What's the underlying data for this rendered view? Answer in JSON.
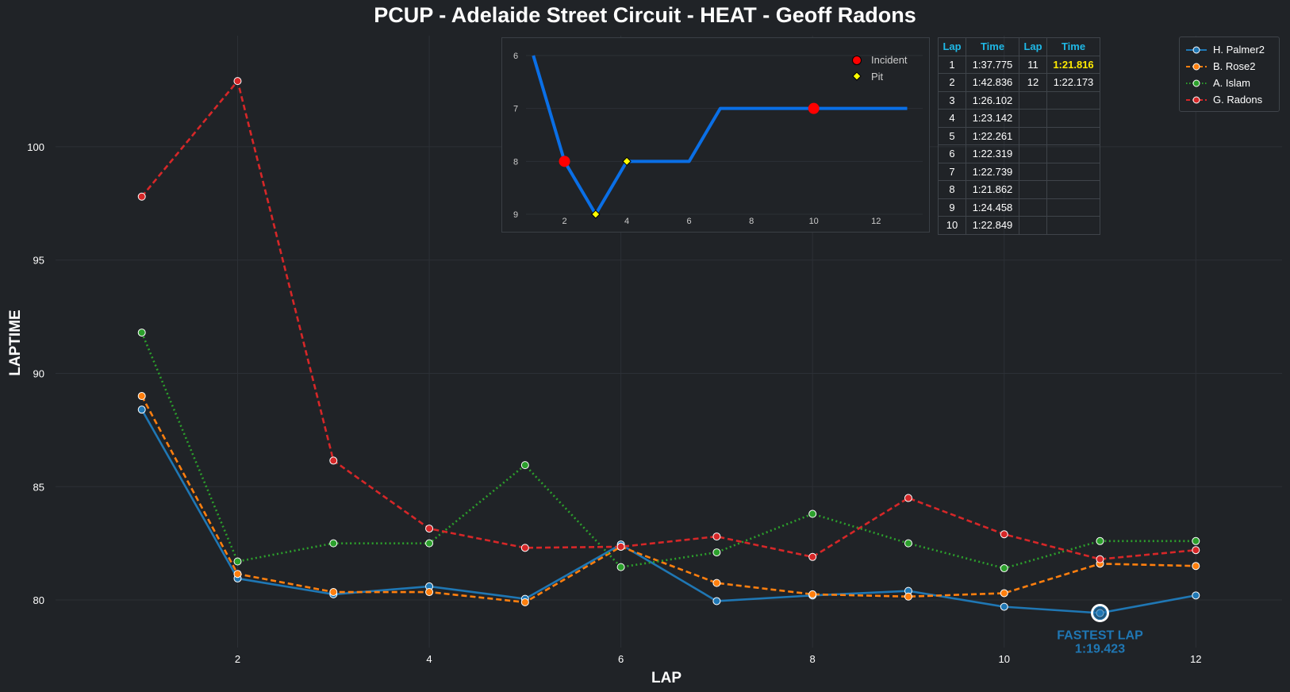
{
  "title": "PCUP - Adelaide Street Circuit - HEAT - Geoff Radons",
  "colors": {
    "background": "#202327",
    "grid": "#2c3036"
  },
  "chart_data": [
    {
      "type": "line",
      "xlabel": "LAP",
      "ylabel": "LAPTIME",
      "xlim": [
        0.1,
        12.9
      ],
      "ylim": [
        77.9,
        104.9
      ],
      "xticks": [
        2,
        4,
        6,
        8,
        10,
        12
      ],
      "yticks": [
        80,
        85,
        90,
        95,
        100
      ],
      "legend_position": "top-right",
      "x": [
        1,
        2,
        3,
        4,
        5,
        6,
        7,
        8,
        9,
        10,
        11,
        12
      ],
      "series": [
        {
          "name": "H. Palmer2",
          "color": "#1f77b4",
          "style": "solid",
          "values": [
            88.4,
            80.95,
            80.25,
            80.6,
            80.05,
            82.45,
            79.95,
            80.2,
            80.4,
            79.7,
            79.423,
            80.2
          ]
        },
        {
          "name": "B. Rose2",
          "color": "#ff7f0e",
          "style": "dashed",
          "values": [
            89.0,
            81.15,
            80.35,
            80.35,
            79.9,
            82.35,
            80.75,
            80.25,
            80.15,
            80.3,
            81.6,
            81.5
          ]
        },
        {
          "name": "A. Islam",
          "color": "#2ca02c",
          "style": "dotted",
          "values": [
            91.8,
            81.7,
            82.5,
            82.5,
            85.95,
            81.45,
            82.1,
            83.8,
            82.5,
            81.4,
            82.6,
            82.6
          ]
        },
        {
          "name": "G. Radons",
          "color": "#d62728",
          "style": "dashed",
          "values": [
            97.8,
            102.9,
            86.15,
            83.15,
            82.3,
            82.35,
            82.8,
            81.9,
            84.5,
            82.9,
            81.8,
            82.2
          ]
        }
      ],
      "annotation": {
        "series": "H. Palmer2",
        "x": 11,
        "y": 79.423,
        "label_line1": "FASTEST LAP",
        "label_line2": "1:19.423",
        "color": "#1f77b4"
      }
    },
    {
      "type": "line",
      "name": "position-inset",
      "xlim": [
        0.0,
        13.7
      ],
      "ylim": [
        9.27,
        5.73
      ],
      "xticks": [
        2,
        4,
        6,
        8,
        10,
        12
      ],
      "yticks": [
        6,
        7,
        8,
        9
      ],
      "line_color": "#0a6fe6",
      "x": [
        1,
        2,
        3,
        4,
        5,
        6,
        7,
        8,
        9,
        10,
        11,
        12,
        13
      ],
      "values": [
        6,
        8,
        9,
        8,
        8,
        8,
        7,
        7,
        7,
        7,
        7,
        7,
        7
      ],
      "incidents": [
        {
          "x": 2,
          "y": 8
        },
        {
          "x": 10,
          "y": 7
        }
      ],
      "pits": [
        {
          "x": 3,
          "y": 9
        },
        {
          "x": 4,
          "y": 8
        }
      ],
      "legend": [
        {
          "label": "Incident",
          "marker": "circle",
          "color": "#ff0000"
        },
        {
          "label": "Pit",
          "marker": "diamond",
          "color": "#ffff00"
        }
      ]
    }
  ],
  "lap_table": {
    "headers": [
      "Lap",
      "Time",
      "Lap",
      "Time"
    ],
    "rows": [
      [
        "1",
        "1:37.775",
        "11",
        "1:21.816"
      ],
      [
        "2",
        "1:42.836",
        "12",
        "1:22.173"
      ],
      [
        "3",
        "1:26.102",
        "",
        ""
      ],
      [
        "4",
        "1:23.142",
        "",
        ""
      ],
      [
        "5",
        "1:22.261",
        "",
        ""
      ],
      [
        "6",
        "1:22.319",
        "",
        ""
      ],
      [
        "7",
        "1:22.739",
        "",
        ""
      ],
      [
        "8",
        "1:21.862",
        "",
        ""
      ],
      [
        "9",
        "1:24.458",
        "",
        ""
      ],
      [
        "10",
        "1:22.849",
        "",
        ""
      ]
    ],
    "best_time": "1:21.816"
  }
}
